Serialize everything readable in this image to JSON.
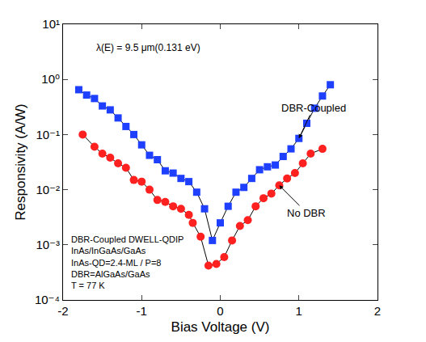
{
  "chart_data": {
    "type": "line",
    "x_label": "Bias Voltage (V)",
    "y_label": "Responsivity (A/W)",
    "log": "y",
    "grid": false,
    "xlim": [
      -2,
      2
    ],
    "xticks": [
      -2,
      -1,
      0,
      1,
      2
    ],
    "ylim": [
      0.0001,
      10
    ],
    "yticks": [
      {
        "value": 0.0001,
        "label": "10⁻⁴"
      },
      {
        "value": 0.001,
        "label": "10⁻³"
      },
      {
        "value": 0.01,
        "label": "10⁻²"
      },
      {
        "value": 0.1,
        "label": "10⁻¹"
      },
      {
        "value": 1,
        "label": "10⁰"
      },
      {
        "value": 10,
        "label": "10¹"
      }
    ],
    "annotations": [
      "λ(E) = 9.5 μm(0.131 eV)",
      "DBR-Coupled DWELL-QDIP",
      "InAs/InGaAs/GaAs",
      "InAs-QD=2.4-ML / P=8",
      "DBR=AlGaAs/GaAs",
      "T = 77 K"
    ],
    "series": [
      {
        "name": "DBR-Coupled",
        "color": "#1f3fff",
        "marker": "square",
        "x": [
          -1.8,
          -1.7,
          -1.6,
          -1.5,
          -1.4,
          -1.3,
          -1.2,
          -1.1,
          -1.0,
          -0.9,
          -0.8,
          -0.7,
          -0.6,
          -0.5,
          -0.4,
          -0.3,
          -0.2,
          -0.1,
          0.0,
          0.1,
          0.2,
          0.3,
          0.4,
          0.5,
          0.6,
          0.7,
          0.8,
          0.9,
          1.0,
          1.1,
          1.2,
          1.3,
          1.4
        ],
        "values": [
          0.65,
          0.52,
          0.45,
          0.33,
          0.28,
          0.2,
          0.14,
          0.1,
          0.065,
          0.042,
          0.035,
          0.022,
          0.02,
          0.016,
          0.014,
          0.009,
          0.0045,
          0.0012,
          0.0025,
          0.005,
          0.009,
          0.011,
          0.016,
          0.023,
          0.026,
          0.028,
          0.04,
          0.055,
          0.085,
          0.16,
          0.3,
          0.5,
          0.8
        ]
      },
      {
        "name": "No DBR",
        "color": "#ff2020",
        "marker": "circle",
        "x": [
          -1.75,
          -1.6,
          -1.5,
          -1.4,
          -1.3,
          -1.2,
          -1.1,
          -1.0,
          -0.9,
          -0.8,
          -0.7,
          -0.6,
          -0.5,
          -0.4,
          -0.35,
          -0.25,
          -0.15,
          -0.05,
          0.05,
          0.15,
          0.25,
          0.35,
          0.45,
          0.55,
          0.65,
          0.75,
          0.85,
          0.95,
          1.05,
          1.15,
          1.3
        ],
        "values": [
          0.1,
          0.06,
          0.045,
          0.038,
          0.03,
          0.025,
          0.015,
          0.014,
          0.01,
          0.0065,
          0.006,
          0.005,
          0.0045,
          0.0035,
          0.0025,
          0.0014,
          0.00042,
          0.00045,
          0.0006,
          0.0012,
          0.0022,
          0.0028,
          0.005,
          0.007,
          0.0085,
          0.012,
          0.016,
          0.02,
          0.03,
          0.045,
          0.055
        ]
      }
    ]
  }
}
